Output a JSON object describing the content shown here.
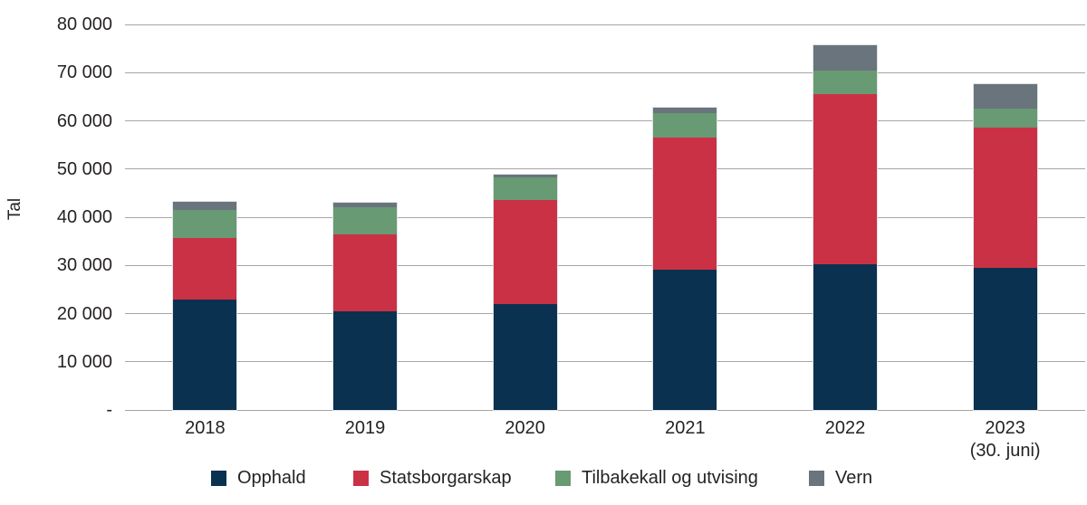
{
  "chart_data": {
    "type": "bar",
    "stacked": true,
    "title": "",
    "ylabel": "Tal",
    "xlabel": "",
    "ylim": [
      0,
      80000
    ],
    "ytick_interval": 10000,
    "ytick_labels": [
      "-",
      "10 000",
      "20 000",
      "30 000",
      "40 000",
      "50 000",
      "60 000",
      "70 000",
      "80 000"
    ],
    "grid": "horizontal",
    "legend_position": "bottom",
    "categories": [
      {
        "label": "2018",
        "sublabel": ""
      },
      {
        "label": "2019",
        "sublabel": ""
      },
      {
        "label": "2020",
        "sublabel": ""
      },
      {
        "label": "2021",
        "sublabel": ""
      },
      {
        "label": "2022",
        "sublabel": ""
      },
      {
        "label": "2023",
        "sublabel": "(30. juni)"
      }
    ],
    "series": [
      {
        "name": "Opphald",
        "color": "#0a3150",
        "values": [
          23000,
          20500,
          22000,
          29200,
          30200,
          29500
        ]
      },
      {
        "name": "Statsborgarskap",
        "color": "#cb3144",
        "values": [
          12700,
          15900,
          21600,
          27300,
          35400,
          29100
        ]
      },
      {
        "name": "Tilbakekall og utvising",
        "color": "#689a74",
        "values": [
          5800,
          5600,
          4700,
          5100,
          4800,
          4000
        ]
      },
      {
        "name": "Vern",
        "color": "#69747c",
        "values": [
          1700,
          1100,
          600,
          1100,
          5200,
          5000
        ]
      }
    ],
    "totals": [
      43200,
      43100,
      48900,
      62700,
      75600,
      67600
    ]
  },
  "colors": {
    "background": "#ffffff",
    "gridline": "#a6a6a6",
    "text": "#262224"
  },
  "legend_left_positions": [
    233,
    390,
    613,
    893
  ]
}
